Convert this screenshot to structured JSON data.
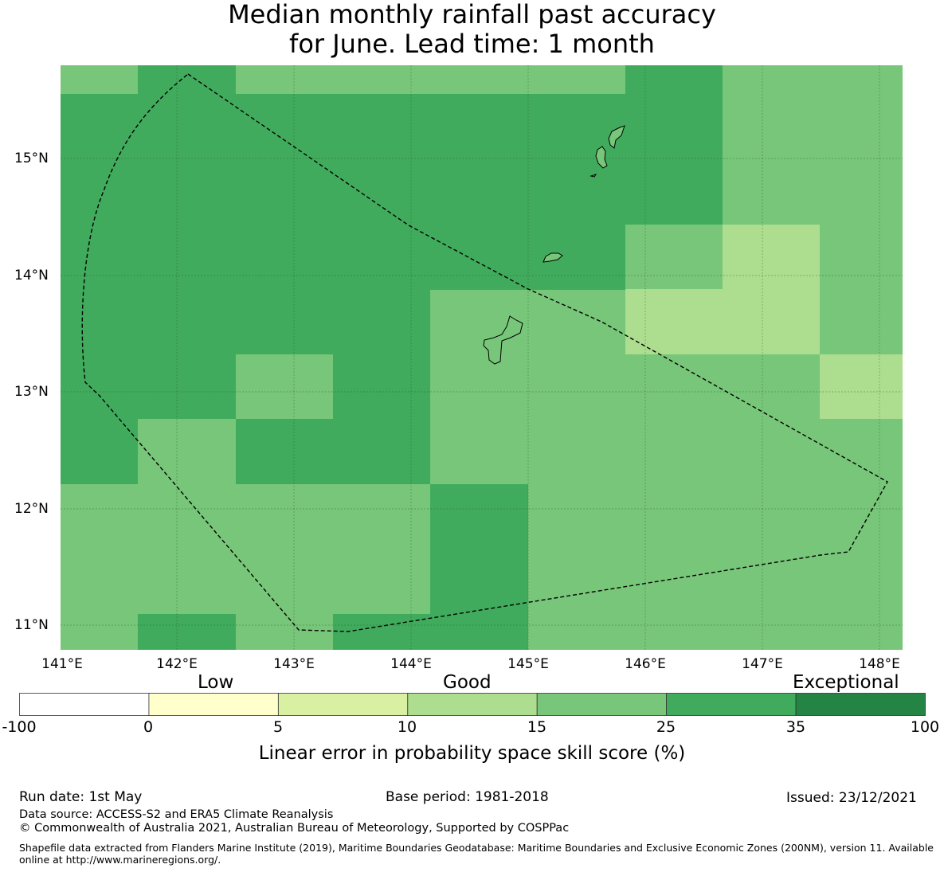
{
  "title": {
    "line1": "Median monthly rainfall past accuracy",
    "line2": "for June. Lead time: 1 month"
  },
  "map": {
    "lat_labels": [
      "15°N",
      "14°N",
      "13°N",
      "12°N",
      "11°N"
    ],
    "lon_labels": [
      "141°E",
      "142°E",
      "143°E",
      "144°E",
      "145°E",
      "146°E",
      "147°E",
      "148°E"
    ],
    "colors": {
      "c15_25": "#78c679",
      "c25_35": "#41ab5d",
      "c10_15": "#addd8e",
      "boundary": "#000000"
    }
  },
  "legend": {
    "categories": [
      "Low",
      "Good",
      "Exceptional"
    ],
    "ticks": [
      "-100",
      "0",
      "5",
      "10",
      "15",
      "25",
      "35",
      "100"
    ],
    "colors": [
      "#ffffff",
      "#ffffcc",
      "#d9f0a3",
      "#addd8e",
      "#78c679",
      "#41ab5d",
      "#238443"
    ],
    "label": "Linear error in probability space skill score (%)"
  },
  "footer": {
    "run_date": "Run date: 1st May",
    "base_period": "Base period: 1981-2018",
    "issued": "Issued: 23/12/2021",
    "data_source": "Data source: ACCESS-S2 and ERA5 Climate Reanalysis",
    "copyright": "© Commonwealth of Australia 2021, Australian Bureau of Meteorology, Supported by COSPPac",
    "shapefile": "Shapefile data extracted from Flanders Marine Institute (2019), Maritime Boundaries Geodatabase: Maritime Boundaries and Exclusive Economic Zones (200NM), version 11. Available online at http://www.marineregions.org/."
  }
}
